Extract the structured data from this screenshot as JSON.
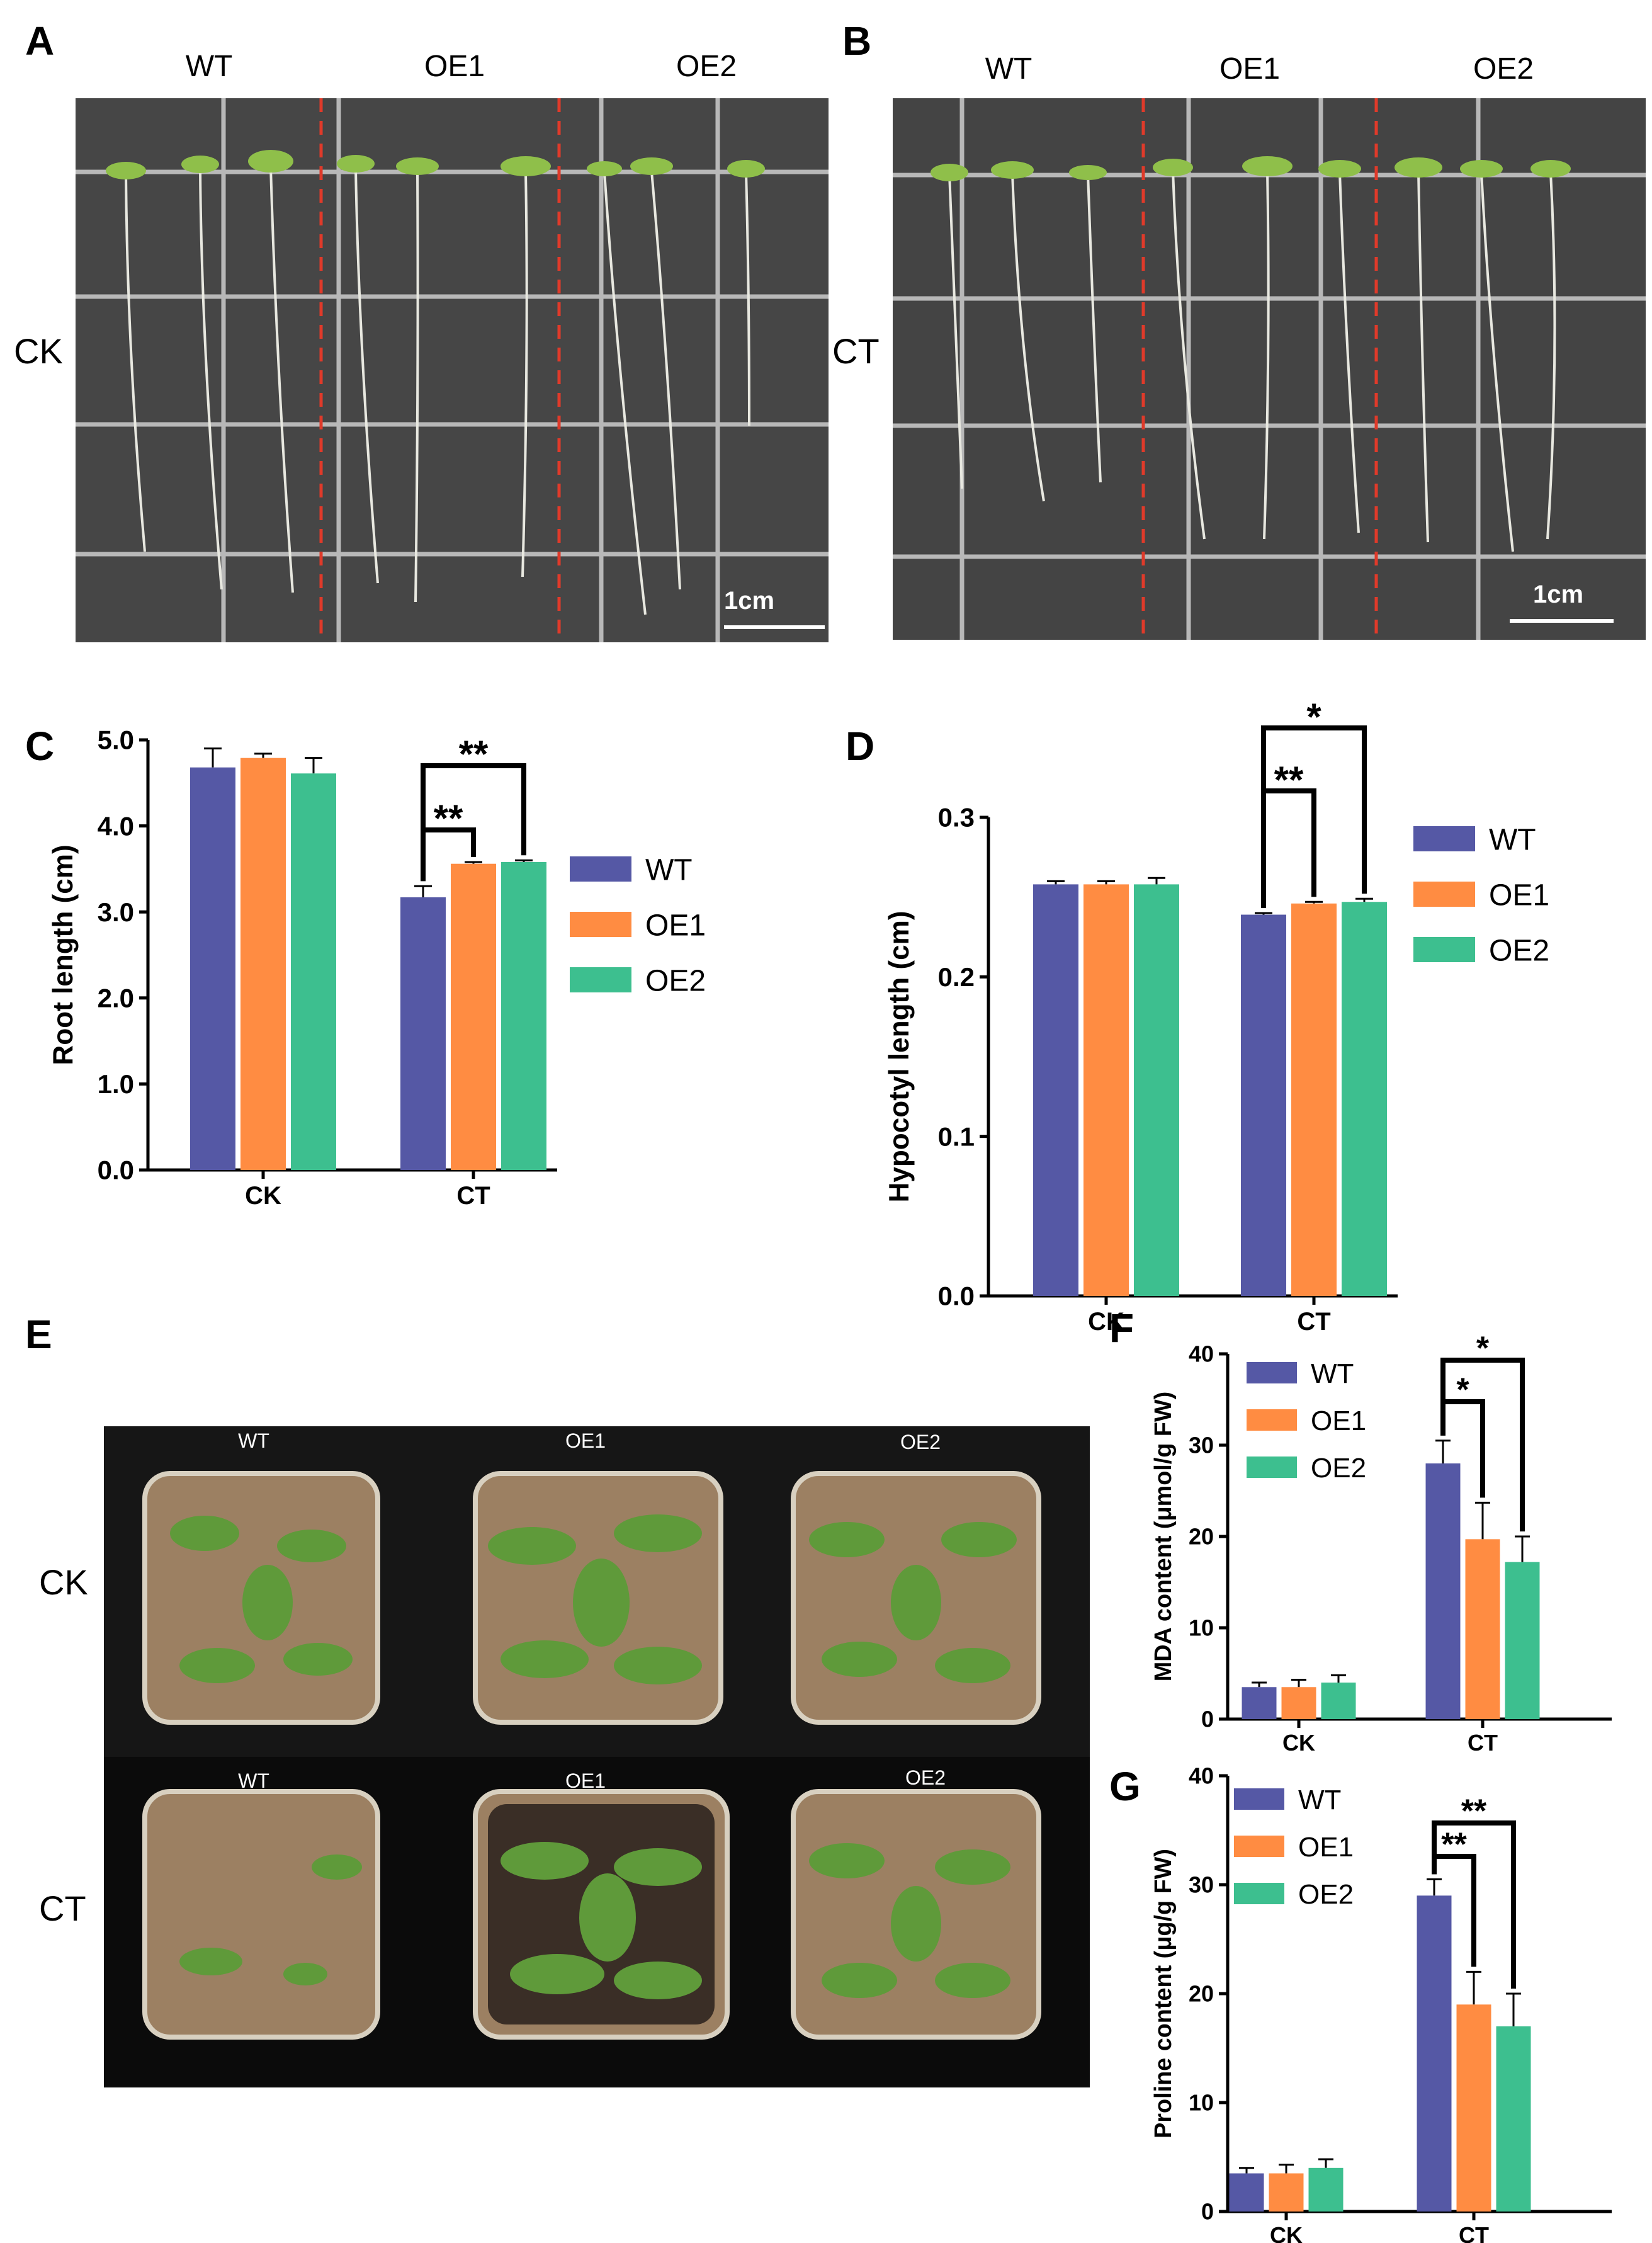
{
  "panels": {
    "A": {
      "letter": "A",
      "columns": [
        "WT",
        "OE1",
        "OE2"
      ],
      "row_label": "CK",
      "scale_bar": "1cm"
    },
    "B": {
      "letter": "B",
      "columns": [
        "WT",
        "OE1",
        "OE2"
      ],
      "row_label": "CT",
      "scale_bar": "1cm"
    },
    "E": {
      "letter": "E",
      "columns": [
        "WT",
        "OE1",
        "OE2"
      ],
      "rows": [
        "CK",
        "CT"
      ]
    }
  },
  "colors": {
    "WT": "#5558a5",
    "OE1": "#ff8c42",
    "OE2": "#3dbf8f"
  },
  "chart_data": [
    {
      "id": "C",
      "letter": "C",
      "type": "bar",
      "ylabel": "Root length (cm)",
      "categories": [
        "CK",
        "CT"
      ],
      "ylim": [
        0,
        5.0
      ],
      "yticks": [
        "0.0",
        "1.0",
        "2.0",
        "3.0",
        "4.0",
        "5.0"
      ],
      "series": [
        {
          "name": "WT",
          "values": [
            4.68,
            3.17
          ],
          "errors": [
            0.22,
            0.13
          ]
        },
        {
          "name": "OE1",
          "values": [
            4.79,
            3.56
          ],
          "errors": [
            0.05,
            0.02
          ]
        },
        {
          "name": "OE2",
          "values": [
            4.61,
            3.58
          ],
          "errors": [
            0.18,
            0.02
          ]
        }
      ],
      "significance": [
        {
          "from_series": 0,
          "to_series": 1,
          "category": 1,
          "label": "**"
        },
        {
          "from_series": 0,
          "to_series": 2,
          "category": 1,
          "label": "**"
        }
      ]
    },
    {
      "id": "D",
      "letter": "D",
      "type": "bar",
      "ylabel": "Hypocotyl length (cm)",
      "categories": [
        "CK",
        "CT"
      ],
      "ylim": [
        0,
        0.3
      ],
      "yticks": [
        "0.0",
        "0.1",
        "0.2",
        "0.3"
      ],
      "series": [
        {
          "name": "WT",
          "values": [
            0.258,
            0.239
          ],
          "errors": [
            0.002,
            0.001
          ]
        },
        {
          "name": "OE1",
          "values": [
            0.258,
            0.246
          ],
          "errors": [
            0.002,
            0.001
          ]
        },
        {
          "name": "OE2",
          "values": [
            0.258,
            0.247
          ],
          "errors": [
            0.004,
            0.002
          ]
        }
      ],
      "significance": [
        {
          "from_series": 0,
          "to_series": 1,
          "category": 1,
          "label": "**"
        },
        {
          "from_series": 0,
          "to_series": 2,
          "category": 1,
          "label": "*"
        }
      ]
    },
    {
      "id": "F",
      "letter": "F",
      "type": "bar",
      "ylabel": "MDA content (μmol/g FW)",
      "categories": [
        "CK",
        "CT"
      ],
      "ylim": [
        0,
        40
      ],
      "yticks": [
        "0",
        "10",
        "20",
        "30",
        "40"
      ],
      "series": [
        {
          "name": "WT",
          "values": [
            3.5,
            28.0
          ],
          "errors": [
            0.5,
            2.5
          ]
        },
        {
          "name": "OE1",
          "values": [
            3.5,
            19.7
          ],
          "errors": [
            0.8,
            4.0
          ]
        },
        {
          "name": "OE2",
          "values": [
            4.0,
            17.2
          ],
          "errors": [
            0.8,
            2.8
          ]
        }
      ],
      "significance": [
        {
          "from_series": 0,
          "to_series": 1,
          "category": 1,
          "label": "*"
        },
        {
          "from_series": 0,
          "to_series": 2,
          "category": 1,
          "label": "*"
        }
      ]
    },
    {
      "id": "G",
      "letter": "G",
      "type": "bar",
      "ylabel": "Proline content (μg/g FW)",
      "categories": [
        "CK",
        "CT"
      ],
      "ylim": [
        0,
        40
      ],
      "yticks": [
        "0",
        "10",
        "20",
        "30",
        "40"
      ],
      "series": [
        {
          "name": "WT",
          "values": [
            3.5,
            29.0
          ],
          "errors": [
            0.5,
            1.5
          ]
        },
        {
          "name": "OE1",
          "values": [
            3.5,
            19.0
          ],
          "errors": [
            0.8,
            3.0
          ]
        },
        {
          "name": "OE2",
          "values": [
            4.0,
            17.0
          ],
          "errors": [
            0.8,
            3.0
          ]
        }
      ],
      "significance": [
        {
          "from_series": 0,
          "to_series": 1,
          "category": 1,
          "label": "**"
        },
        {
          "from_series": 0,
          "to_series": 2,
          "category": 1,
          "label": "**"
        }
      ]
    }
  ]
}
